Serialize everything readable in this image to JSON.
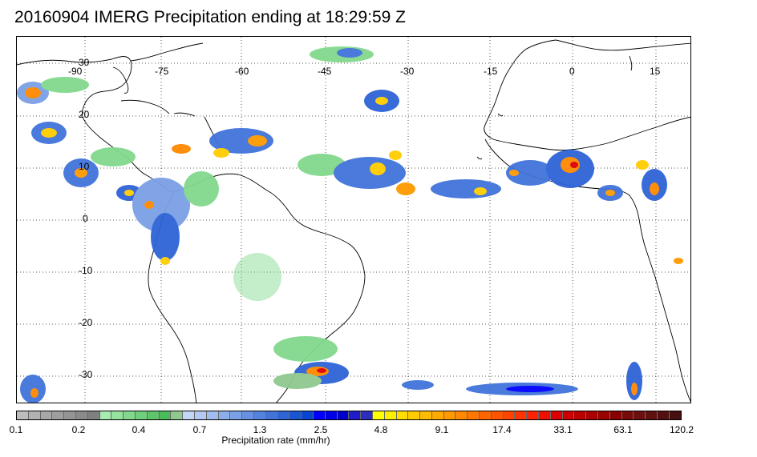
{
  "title": "20160904 IMERG Precipitation ending at 18:29:59 Z",
  "map": {
    "lon_labels": [
      "-90",
      "-75",
      "-60",
      "-45",
      "-30",
      "-15",
      "0",
      "15"
    ],
    "lat_labels": [
      "30",
      "20",
      "10",
      "0",
      "-10",
      "-20",
      "-30"
    ],
    "coastline_color": "#000000",
    "gridline_style": "dotted"
  },
  "colorbar": {
    "title": "Precipitation rate (mm/hr)",
    "tick_labels": [
      "0.1",
      "0.2",
      "0.4",
      "0.7",
      "1.3",
      "2.5",
      "4.8",
      "9.1",
      "17.4",
      "33.1",
      "63.1",
      "120.2"
    ],
    "colors": [
      "#bdbdbd",
      "#b2b2b2",
      "#a8a8a8",
      "#9e9e9e",
      "#949494",
      "#8a8a8a",
      "#808080",
      "#a7ecb0",
      "#95e39e",
      "#82d98d",
      "#70cf7c",
      "#5ec56b",
      "#4cbb5a",
      "#8fc98f",
      "#c4d6f5",
      "#b3c9f2",
      "#a1bcee",
      "#8eaeea",
      "#7ba0e6",
      "#6891e2",
      "#5482de",
      "#4173da",
      "#2e64d6",
      "#1b55d2",
      "#0846ce",
      "#0000ff",
      "#0000e6",
      "#0000cc",
      "#1e1ec8",
      "#2d2dbe",
      "#ffff00",
      "#ffee00",
      "#ffdd00",
      "#ffcc00",
      "#ffbb00",
      "#ffaa00",
      "#ff9900",
      "#ff8800",
      "#ff7700",
      "#ff6600",
      "#ff5500",
      "#ff4400",
      "#ff3300",
      "#ff2200",
      "#ee1100",
      "#dd0000",
      "#cc0000",
      "#bb0000",
      "#aa0000",
      "#990000",
      "#880000",
      "#7a0a0a",
      "#6e0f0f",
      "#611010",
      "#541010",
      "#471010"
    ]
  }
}
